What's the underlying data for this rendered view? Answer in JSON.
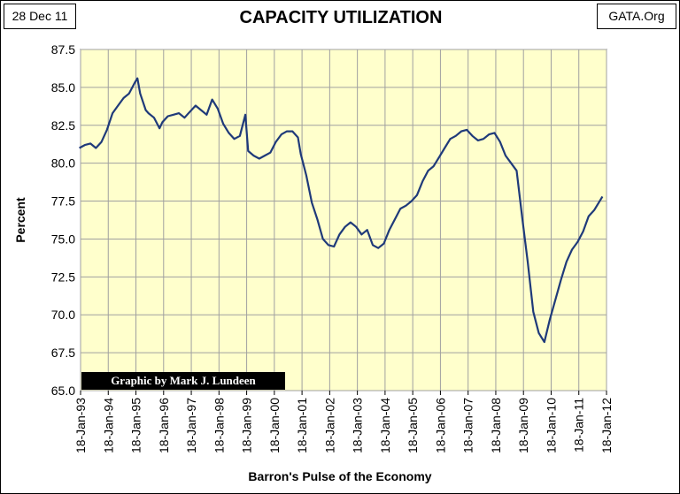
{
  "header": {
    "date": "28 Dec 11",
    "source": "GATA.Org"
  },
  "credit": "Graphic by Mark J. Lundeen",
  "colors": {
    "plot_bg": "#FFFFCC",
    "line": "#1F3A7A",
    "grid": "#A0A0A0"
  },
  "chart_data": {
    "type": "line",
    "title": "CAPACITY UTILIZATION",
    "xlabel": "Barron's Pulse of the Economy",
    "ylabel": "Percent",
    "ylim": [
      65.0,
      87.5
    ],
    "xlim": [
      1993.046,
      2012.046
    ],
    "yticks": [
      "65.0",
      "67.5",
      "70.0",
      "72.5",
      "75.0",
      "77.5",
      "80.0",
      "82.5",
      "85.0",
      "87.5"
    ],
    "xticks": [
      "18-Jan-93",
      "18-Jan-94",
      "18-Jan-95",
      "18-Jan-96",
      "18-Jan-97",
      "18-Jan-98",
      "18-Jan-99",
      "18-Jan-00",
      "18-Jan-01",
      "18-Jan-02",
      "18-Jan-03",
      "18-Jan-04",
      "18-Jan-05",
      "18-Jan-06",
      "18-Jan-07",
      "18-Jan-08",
      "18-Jan-09",
      "18-Jan-10",
      "18-Jan-11",
      "18-Jan-12"
    ],
    "grid": true,
    "series": [
      {
        "x": [
          1993.0,
          1993.2,
          1993.4,
          1993.6,
          1993.8,
          1994.0,
          1994.2,
          1994.4,
          1994.6,
          1994.8,
          1995.0,
          1995.1,
          1995.2,
          1995.4,
          1995.5,
          1995.7,
          1995.9,
          1996.0,
          1996.2,
          1996.4,
          1996.6,
          1996.8,
          1997.0,
          1997.2,
          1997.4,
          1997.6,
          1997.8,
          1998.0,
          1998.2,
          1998.4,
          1998.6,
          1998.8,
          1999.0,
          1999.1,
          1999.3,
          1999.5,
          1999.7,
          1999.9,
          2000.1,
          2000.3,
          2000.5,
          2000.7,
          2000.9,
          2001.0,
          2001.2,
          2001.4,
          2001.6,
          2001.8,
          2002.0,
          2002.2,
          2002.4,
          2002.6,
          2002.8,
          2003.0,
          2003.2,
          2003.4,
          2003.6,
          2003.8,
          2004.0,
          2004.2,
          2004.4,
          2004.6,
          2004.8,
          2005.0,
          2005.2,
          2005.4,
          2005.6,
          2005.8,
          2006.0,
          2006.2,
          2006.4,
          2006.6,
          2006.8,
          2007.0,
          2007.2,
          2007.4,
          2007.6,
          2007.8,
          2008.0,
          2008.2,
          2008.4,
          2008.6,
          2008.8,
          2009.0,
          2009.2,
          2009.4,
          2009.6,
          2009.8,
          2010.0,
          2010.2,
          2010.4,
          2010.6,
          2010.8,
          2011.0,
          2011.2,
          2011.4,
          2011.6,
          2011.8,
          2011.9
        ],
        "y": [
          81.0,
          81.2,
          81.3,
          81.0,
          81.4,
          82.2,
          83.3,
          83.8,
          84.3,
          84.6,
          85.3,
          85.6,
          84.6,
          83.5,
          83.3,
          83.0,
          82.3,
          82.7,
          83.1,
          83.2,
          83.3,
          83.0,
          83.4,
          83.8,
          83.5,
          83.2,
          84.2,
          83.6,
          82.6,
          82.0,
          81.6,
          81.8,
          83.2,
          80.8,
          80.5,
          80.3,
          80.5,
          80.7,
          81.4,
          81.9,
          82.1,
          82.1,
          81.7,
          80.6,
          79.2,
          77.4,
          76.3,
          75.0,
          74.6,
          74.5,
          75.3,
          75.8,
          76.1,
          75.8,
          75.3,
          75.6,
          74.6,
          74.4,
          74.7,
          75.6,
          76.3,
          77.0,
          77.2,
          77.5,
          77.9,
          78.8,
          79.5,
          79.8,
          80.4,
          81.0,
          81.6,
          81.8,
          82.1,
          82.2,
          81.8,
          81.5,
          81.6,
          81.9,
          82.0,
          81.4,
          80.5,
          80.0,
          79.5,
          76.4,
          73.5,
          70.2,
          68.8,
          68.2,
          69.7,
          71.0,
          72.3,
          73.5,
          74.3,
          74.8,
          75.5,
          76.5,
          76.9,
          77.5,
          77.8
        ]
      }
    ]
  }
}
